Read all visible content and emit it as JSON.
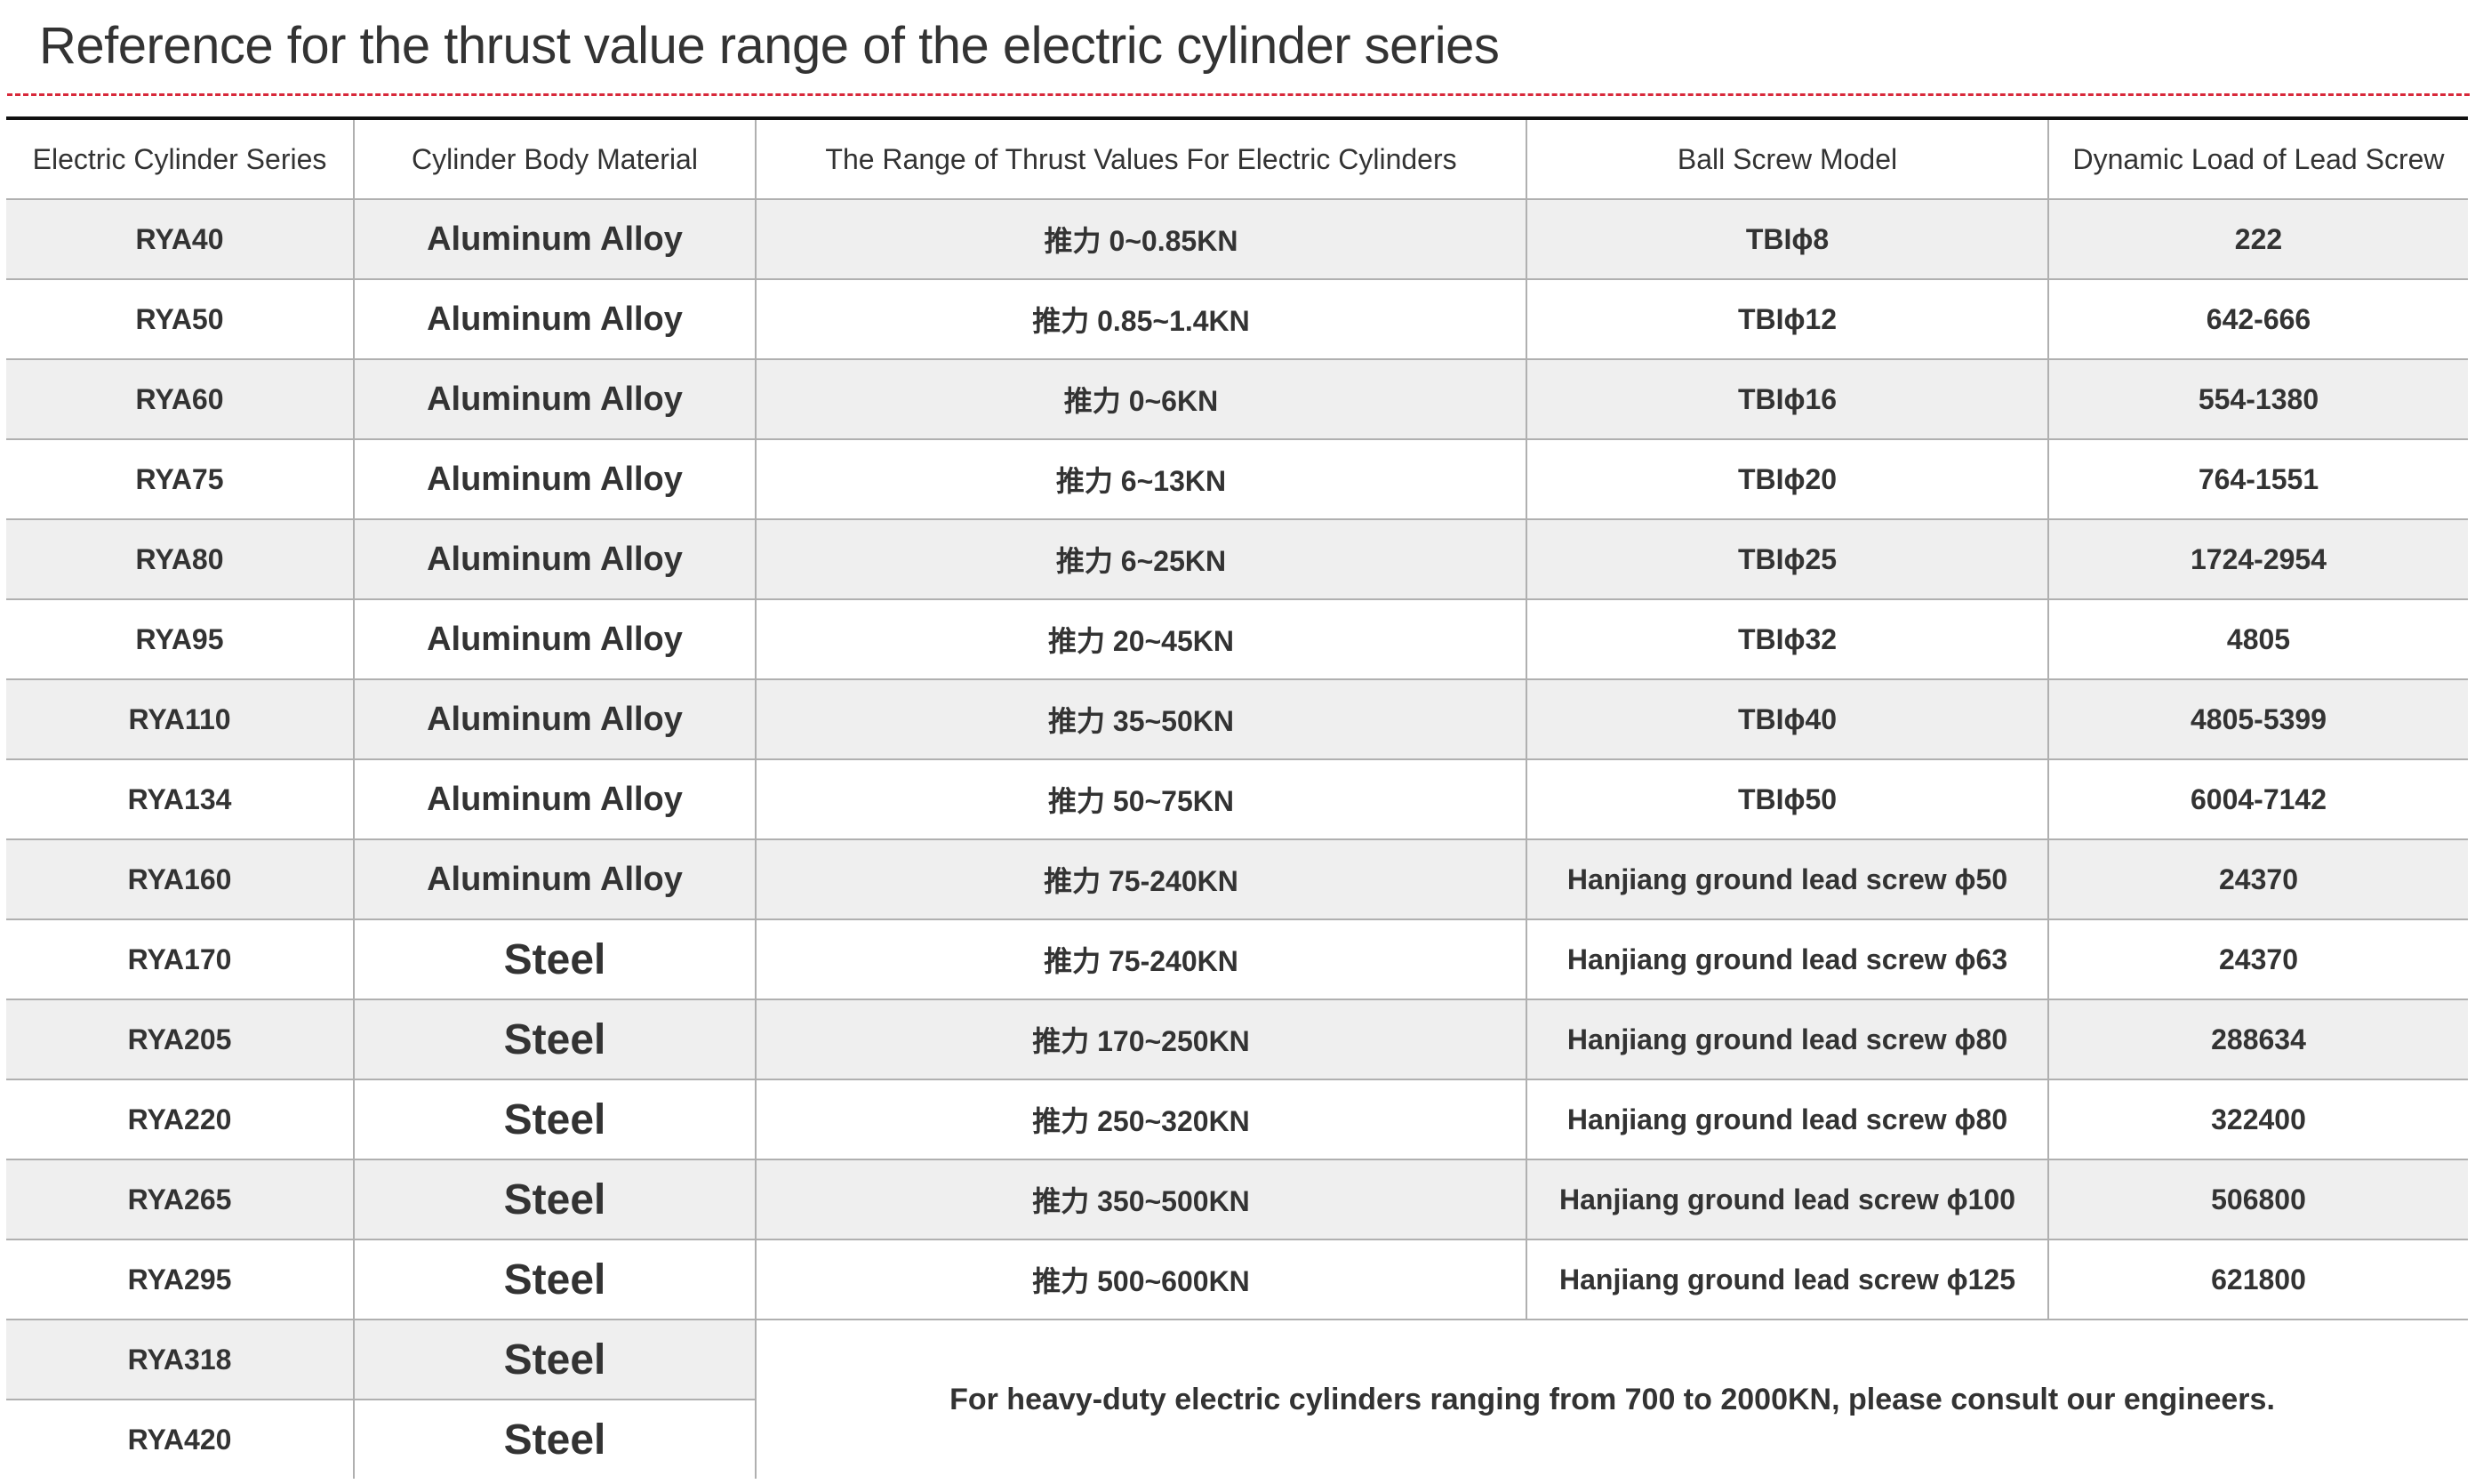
{
  "title": "Reference for the thrust value range of the electric cylinder series",
  "colors": {
    "accent_dashed_line": "#d8283a",
    "alt_row": "#efefef"
  },
  "table": {
    "headers": [
      "Electric Cylinder Series",
      "Cylinder Body Material",
      "The Range of Thrust Values For Electric Cylinders",
      "Ball Screw Model",
      "Dynamic Load of Lead Screw"
    ],
    "rows": [
      {
        "series": "RYA40",
        "material": "Aluminum Alloy",
        "thrust": "推力 0~0.85KN",
        "screw": "TBIϕ8",
        "load": "222"
      },
      {
        "series": "RYA50",
        "material": "Aluminum Alloy",
        "thrust": "推力 0.85~1.4KN",
        "screw": "TBIϕ12",
        "load": "642-666"
      },
      {
        "series": "RYA60",
        "material": "Aluminum Alloy",
        "thrust": "推力 0~6KN",
        "screw": "TBIϕ16",
        "load": "554-1380"
      },
      {
        "series": "RYA75",
        "material": "Aluminum Alloy",
        "thrust": "推力 6~13KN",
        "screw": "TBIϕ20",
        "load": "764-1551"
      },
      {
        "series": "RYA80",
        "material": "Aluminum Alloy",
        "thrust": "推力 6~25KN",
        "screw": "TBIϕ25",
        "load": "1724-2954"
      },
      {
        "series": "RYA95",
        "material": "Aluminum Alloy",
        "thrust": "推力 20~45KN",
        "screw": "TBIϕ32",
        "load": "4805"
      },
      {
        "series": "RYA110",
        "material": "Aluminum Alloy",
        "thrust": "推力 35~50KN",
        "screw": "TBIϕ40",
        "load": "4805-5399"
      },
      {
        "series": "RYA134",
        "material": "Aluminum Alloy",
        "thrust": "推力 50~75KN",
        "screw": "TBIϕ50",
        "load": "6004-7142"
      },
      {
        "series": "RYA160",
        "material": "Aluminum Alloy",
        "thrust": "推力 75-240KN",
        "screw": "Hanjiang ground lead screw ϕ50",
        "load": "24370"
      },
      {
        "series": "RYA170",
        "material": "Steel",
        "thrust": "推力 75-240KN",
        "screw": "Hanjiang ground lead screw ϕ63",
        "load": "24370"
      },
      {
        "series": "RYA205",
        "material": "Steel",
        "thrust": "推力 170~250KN",
        "screw": "Hanjiang ground lead screw ϕ80",
        "load": "288634"
      },
      {
        "series": "RYA220",
        "material": "Steel",
        "thrust": "推力 250~320KN",
        "screw": "Hanjiang ground lead screw ϕ80",
        "load": "322400"
      },
      {
        "series": "RYA265",
        "material": "Steel",
        "thrust": "推力 350~500KN",
        "screw": "Hanjiang ground lead screw ϕ100",
        "load": "506800"
      },
      {
        "series": "RYA295",
        "material": "Steel",
        "thrust": "推力 500~600KN",
        "screw": "Hanjiang ground lead screw ϕ125",
        "load": "621800"
      },
      {
        "series": "RYA318",
        "material": "Steel"
      },
      {
        "series": "RYA420",
        "material": "Steel"
      }
    ],
    "note": "For heavy-duty electric cylinders ranging from 700 to 2000KN, please consult our engineers."
  }
}
